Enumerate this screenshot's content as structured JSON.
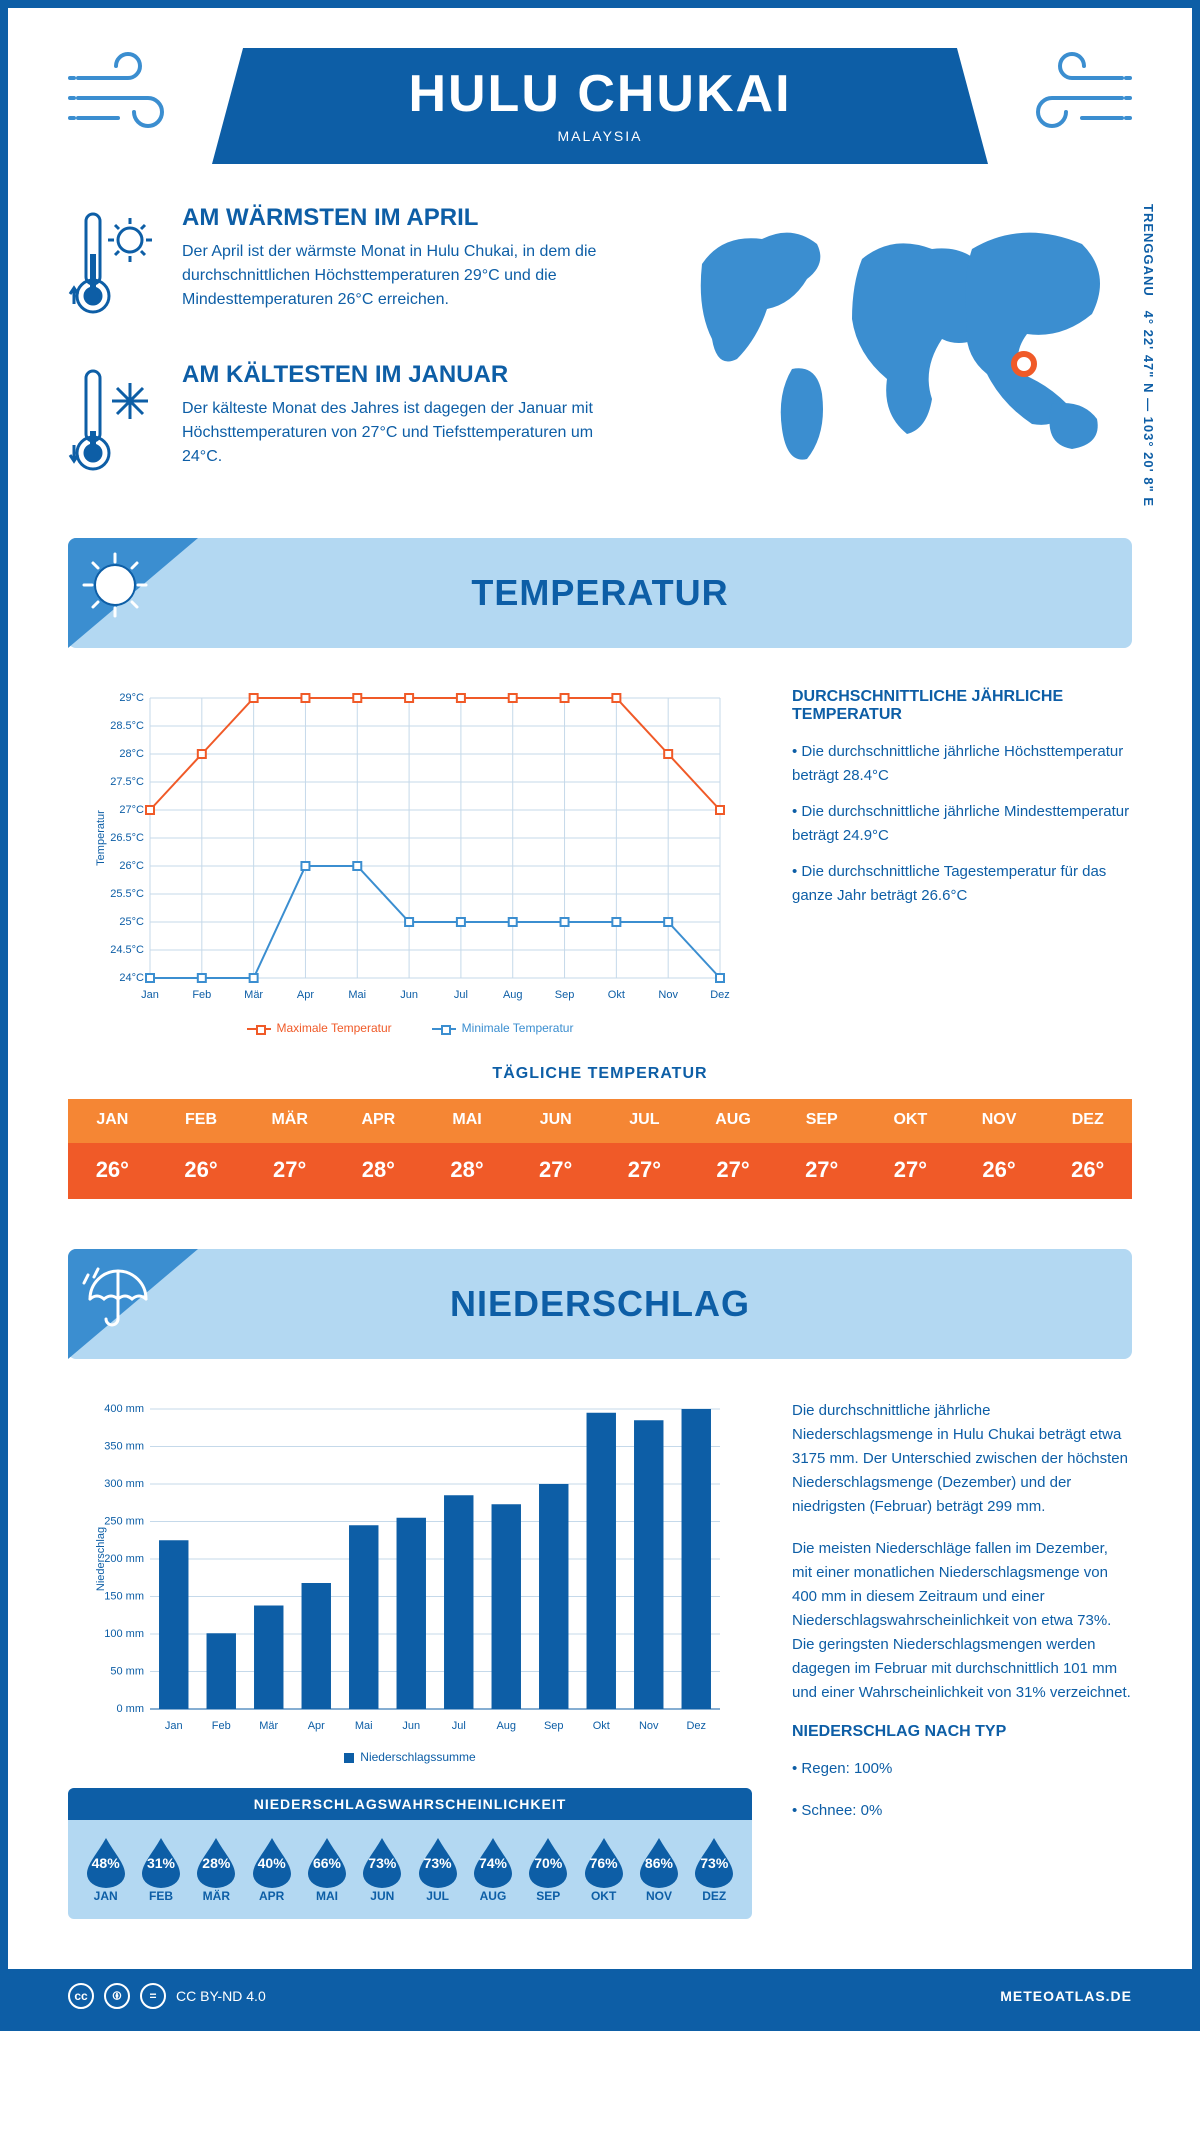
{
  "header": {
    "title": "HULU CHUKAI",
    "country": "MALAYSIA"
  },
  "coords": "4° 22' 47\" N — 103° 20' 8\" E",
  "coords_region": "TRENGGANU",
  "location_marker": {
    "lon": 103.33,
    "lat": 4.38
  },
  "facts": {
    "warm": {
      "title": "AM WÄRMSTEN IM APRIL",
      "text": "Der April ist der wärmste Monat in Hulu Chukai, in dem die durchschnittlichen Höchsttemperaturen 29°C und die Mindesttemperaturen 26°C erreichen."
    },
    "cold": {
      "title": "AM KÄLTESTEN IM JANUAR",
      "text": "Der kälteste Monat des Jahres ist dagegen der Januar mit Höchsttemperaturen von 27°C und Tiefsttemperaturen um 24°C."
    }
  },
  "temp_section": {
    "title": "TEMPERATUR",
    "chart": {
      "type": "line",
      "months": [
        "Jan",
        "Feb",
        "Mär",
        "Apr",
        "Mai",
        "Jun",
        "Jul",
        "Aug",
        "Sep",
        "Okt",
        "Nov",
        "Dez"
      ],
      "y_axis": {
        "min": 24,
        "max": 29,
        "step": 0.5,
        "labels": [
          "24°C",
          "24.5°C",
          "25°C",
          "25.5°C",
          "26°C",
          "26.5°C",
          "27°C",
          "27.5°C",
          "28°C",
          "28.5°C",
          "29°C"
        ],
        "title": "Temperatur"
      },
      "series_max": {
        "label": "Maximale Temperatur",
        "color": "#f05a28",
        "values": [
          27,
          28,
          29,
          29,
          29,
          29,
          29,
          29,
          29,
          29,
          28,
          27
        ]
      },
      "series_min": {
        "label": "Minimale Temperatur",
        "color": "#3b8ed0",
        "values": [
          24,
          24,
          24,
          26,
          26,
          25,
          25,
          25,
          25,
          25,
          25,
          24
        ]
      },
      "grid_color": "#c5d9ea",
      "background": "#ffffff"
    },
    "side": {
      "title": "DURCHSCHNITTLICHE JÄHRLICHE TEMPERATUR",
      "b1": "Die durchschnittliche jährliche Höchsttemperatur beträgt 28.4°C",
      "b2": "Die durchschnittliche jährliche Mindesttemperatur beträgt 24.9°C",
      "b3": "Die durchschnittliche Tagestemperatur für das ganze Jahr beträgt 26.6°C"
    },
    "daily": {
      "title": "TÄGLICHE TEMPERATUR",
      "months": [
        "JAN",
        "FEB",
        "MÄR",
        "APR",
        "MAI",
        "JUN",
        "JUL",
        "AUG",
        "SEP",
        "OKT",
        "NOV",
        "DEZ"
      ],
      "values": [
        "26°",
        "26°",
        "27°",
        "28°",
        "28°",
        "27°",
        "27°",
        "27°",
        "27°",
        "27°",
        "26°",
        "26°"
      ],
      "head_bg": "#f58634",
      "val_bg": "#f05a28"
    }
  },
  "precip_section": {
    "title": "NIEDERSCHLAG",
    "chart": {
      "type": "bar",
      "months": [
        "Jan",
        "Feb",
        "Mär",
        "Apr",
        "Mai",
        "Jun",
        "Jul",
        "Aug",
        "Sep",
        "Okt",
        "Nov",
        "Dez"
      ],
      "y_axis": {
        "min": 0,
        "max": 400,
        "step": 50,
        "labels": [
          "0 mm",
          "50 mm",
          "100 mm",
          "150 mm",
          "200 mm",
          "250 mm",
          "300 mm",
          "350 mm",
          "400 mm"
        ],
        "title": "Niederschlag"
      },
      "values": [
        225,
        101,
        138,
        168,
        245,
        255,
        285,
        273,
        300,
        395,
        385,
        400
      ],
      "bar_color": "#0d5ea6",
      "legend": "Niederschlagssumme",
      "grid_color": "#c5d9ea"
    },
    "side": {
      "p1": "Die durchschnittliche jährliche Niederschlagsmenge in Hulu Chukai beträgt etwa 3175 mm. Der Unterschied zwischen der höchsten Niederschlagsmenge (Dezember) und der niedrigsten (Februar) beträgt 299 mm.",
      "p2": "Die meisten Niederschläge fallen im Dezember, mit einer monatlichen Niederschlagsmenge von 400 mm in diesem Zeitraum und einer Niederschlagswahrscheinlichkeit von etwa 73%. Die geringsten Niederschlagsmengen werden dagegen im Februar mit durchschnittlich 101 mm und einer Wahrscheinlichkeit von 31% verzeichnet.",
      "type_title": "NIEDERSCHLAG NACH TYP",
      "t1": "Regen: 100%",
      "t2": "Schnee: 0%"
    },
    "prob": {
      "title": "NIEDERSCHLAGSWAHRSCHEINLICHKEIT",
      "months": [
        "JAN",
        "FEB",
        "MÄR",
        "APR",
        "MAI",
        "JUN",
        "JUL",
        "AUG",
        "SEP",
        "OKT",
        "NOV",
        "DEZ"
      ],
      "values": [
        "48%",
        "31%",
        "28%",
        "40%",
        "66%",
        "73%",
        "73%",
        "74%",
        "70%",
        "76%",
        "86%",
        "73%"
      ],
      "drop_color": "#0d5ea6"
    }
  },
  "footer": {
    "license": "CC BY-ND 4.0",
    "brand": "METEOATLAS.DE"
  },
  "palette": {
    "primary": "#0d5ea6",
    "light": "#b3d8f2",
    "accent": "#3b8ed0",
    "orange": "#f05a28",
    "orange_light": "#f58634"
  }
}
